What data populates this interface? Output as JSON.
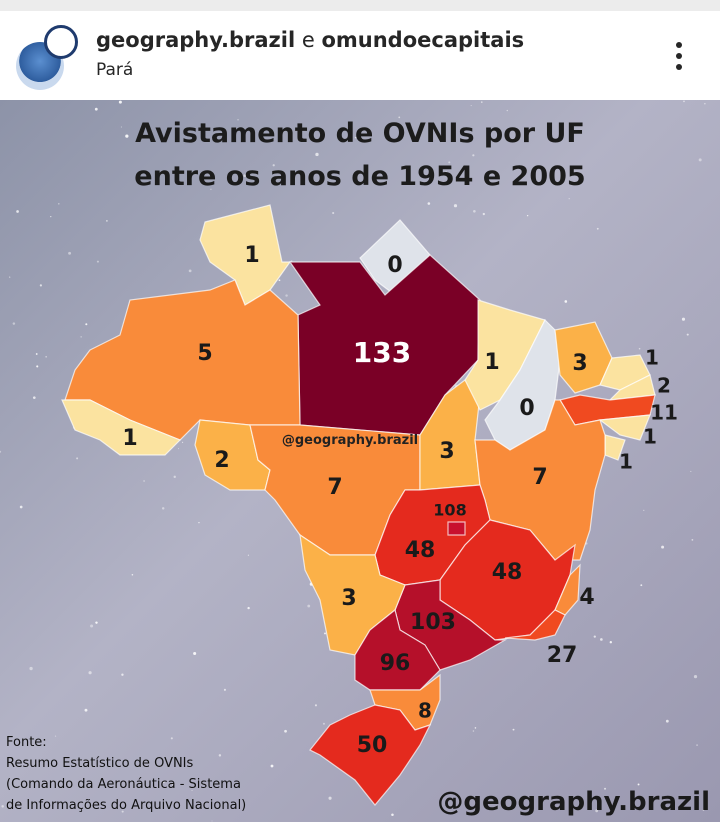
{
  "header": {
    "user1": "geography.brazil",
    "connector": "e",
    "user2": "omundoecapitais",
    "location": "Pará"
  },
  "map": {
    "title": [
      "Avistamento de OVNIs por UF",
      "entre os anos de 1954 e 2005"
    ],
    "watermark_small": "@geography.brazil",
    "watermark": "@geography.brazil",
    "source": [
      "Fonte:",
      "Resumo Estatístico de OVNIs",
      "(Comando da Aeronáutica - Sistema",
      "de Informações do Arquivo Nacional)"
    ],
    "regions": [
      {
        "value": 1,
        "color": "#fbe3a0"
      },
      {
        "value": 0,
        "color": "#dfe3ea"
      },
      {
        "value": 133,
        "color": "#7a0026"
      },
      {
        "value": 5,
        "color": "#f98b3a"
      },
      {
        "value": 1,
        "color": "#fbe3a0"
      },
      {
        "value": 2,
        "color": "#fbb148"
      },
      {
        "value": 7,
        "color": "#f98b3a"
      },
      {
        "value": 3,
        "color": "#fbb148"
      },
      {
        "value": 1,
        "color": "#fbe3a0"
      },
      {
        "value": 0,
        "color": "#dfe3ea"
      },
      {
        "value": 3,
        "color": "#fbb148"
      },
      {
        "value": 1,
        "color": "#fbe3a0"
      },
      {
        "value": 2,
        "color": "#fbe3a0"
      },
      {
        "value": 11,
        "color": "#f04a20"
      },
      {
        "value": 1,
        "color": "#fbe3a0"
      },
      {
        "value": 1,
        "color": "#fbe3a0"
      },
      {
        "value": 7,
        "color": "#f98b3a"
      },
      {
        "value": 48,
        "color": "#e42a1e"
      },
      {
        "value": 108,
        "color": "#c8102e"
      },
      {
        "value": 48,
        "color": "#e42a1e"
      },
      {
        "value": 4,
        "color": "#f98b3a"
      },
      {
        "value": 27,
        "color": "#f04a20"
      },
      {
        "value": 103,
        "color": "#b5102a"
      },
      {
        "value": 3,
        "color": "#fbb148"
      },
      {
        "value": 96,
        "color": "#b5102a"
      },
      {
        "value": 8,
        "color": "#f98b3a"
      },
      {
        "value": 50,
        "color": "#e42a1e"
      }
    ]
  }
}
